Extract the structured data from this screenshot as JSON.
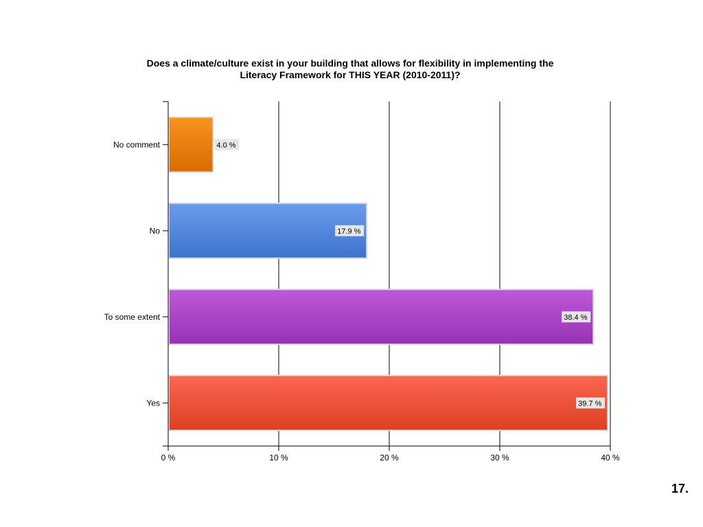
{
  "chart_data": {
    "type": "bar",
    "orientation": "horizontal",
    "title_lines": [
      "Does a climate/culture exist in your building that allows for flexibility in implementing the",
      "Literacy Framework for THIS YEAR (2010-2011)?"
    ],
    "categories": [
      "No comment",
      "No",
      "To some extent",
      "Yes"
    ],
    "values": [
      4.0,
      17.9,
      38.4,
      39.7
    ],
    "data_labels": [
      "4.0 %",
      "17.9 %",
      "38.4 %",
      "39.7 %"
    ],
    "bar_colors": [
      [
        "#F7941D",
        "#D96A00"
      ],
      [
        "#6A9BEA",
        "#3F72CF"
      ],
      [
        "#BE59D8",
        "#9633B5"
      ],
      [
        "#FA6650",
        "#DE3F22"
      ]
    ],
    "xlim": [
      0,
      40
    ],
    "x_ticks": [
      0,
      10,
      20,
      30,
      40
    ],
    "x_tick_labels": [
      "0 %",
      "10 %",
      "20 %",
      "30 %",
      "40 %"
    ],
    "grid": "vertical",
    "legend": "none"
  },
  "slide_number": "17."
}
